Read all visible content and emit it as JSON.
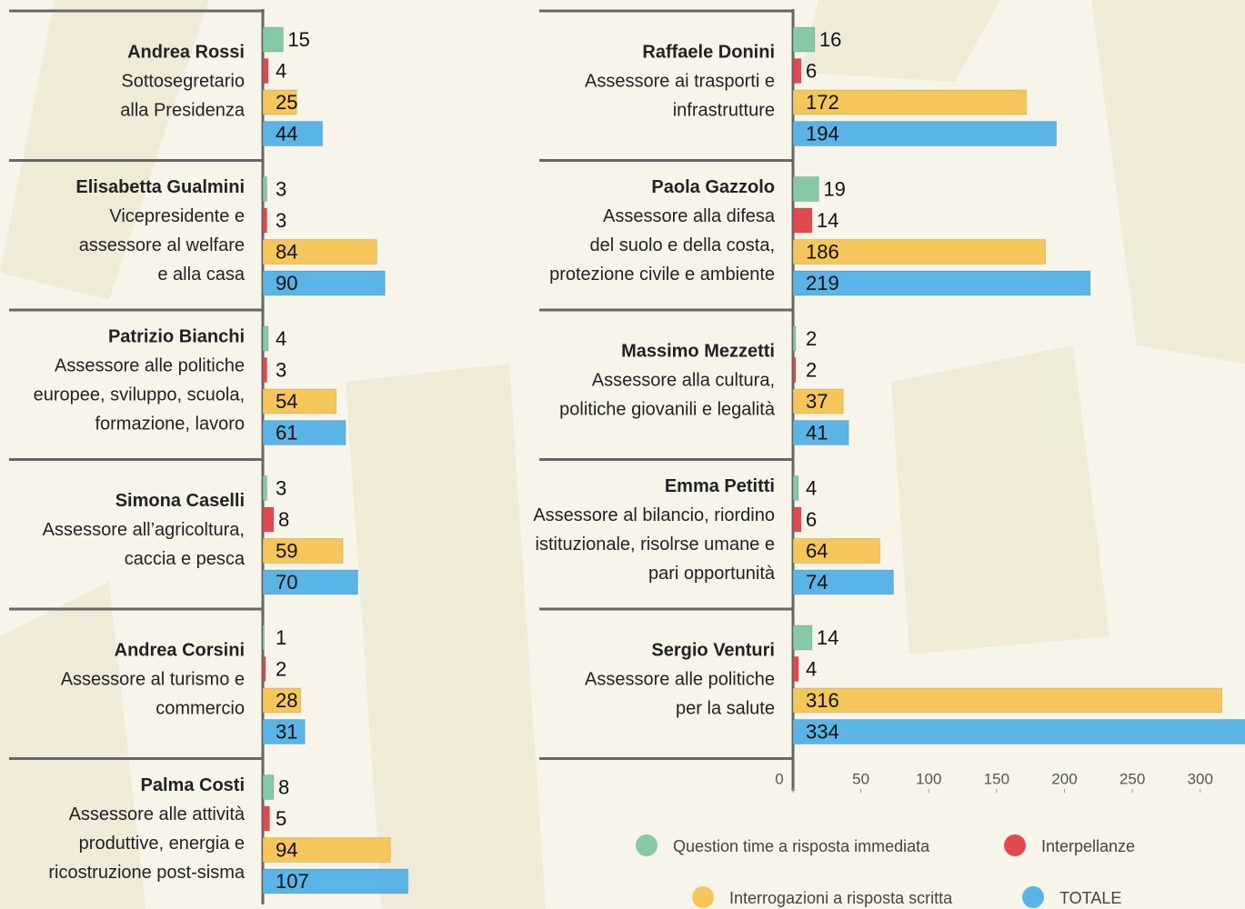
{
  "chart_data": [
    {
      "type": "bar",
      "categories": [
        "Andrea Rossi",
        "Elisabetta Gualmini",
        "Patrizio Bianchi",
        "Simona Caselli",
        "Andrea Corsini",
        "Palma Costi"
      ],
      "roles": [
        [
          "Sottosegretario",
          "alla Presidenza"
        ],
        [
          "Vicepresidente e",
          "assessore al welfare",
          "e alla casa"
        ],
        [
          "Assessore alle politiche",
          "europee, sviluppo, scuola,",
          "formazione, lavoro"
        ],
        [
          "Assessore all’agricoltura,",
          "caccia e pesca"
        ],
        [
          "Assessore al turismo e",
          "commercio"
        ],
        [
          "Assessore alle attività",
          "produttive, energia e",
          "ricostruzione post-sisma"
        ]
      ],
      "series": [
        {
          "color": "#86c9a4",
          "values": [
            15,
            3,
            4,
            3,
            1,
            8
          ]
        },
        {
          "color": "#e04a4f",
          "values": [
            4,
            3,
            3,
            8,
            2,
            5
          ]
        },
        {
          "color": "#f5c75a",
          "values": [
            25,
            84,
            54,
            59,
            28,
            94
          ]
        },
        {
          "color": "#5ab4e6",
          "values": [
            44,
            90,
            61,
            70,
            31,
            107
          ]
        }
      ]
    },
    {
      "type": "bar",
      "categories": [
        "Raffaele Donini",
        "Paola Gazzolo",
        "Massimo Mezzetti",
        "Emma Petitti",
        "Sergio Venturi"
      ],
      "roles": [
        [
          "Assessore ai trasporti e",
          "infrastrutture"
        ],
        [
          "Assessore alla difesa",
          "del suolo e della costa,",
          "protezione civile e ambiente"
        ],
        [
          "Assessore alla cultura,",
          "politiche giovanili e legalità"
        ],
        [
          "Assessore al bilancio, riordino",
          "istituzionale, risolrse umane e",
          "pari opportunità"
        ],
        [
          "Assessore alle politiche",
          "per la salute"
        ]
      ],
      "series": [
        {
          "name": "Question time a risposta immediata",
          "color": "#86c9a4",
          "values": [
            16,
            19,
            2,
            4,
            14
          ]
        },
        {
          "name": "Interpellanze",
          "color": "#e04a4f",
          "values": [
            6,
            14,
            2,
            6,
            4
          ]
        },
        {
          "name": "Interrogazioni a risposta scritta",
          "color": "#f5c75a",
          "values": [
            172,
            186,
            37,
            64,
            316
          ]
        },
        {
          "name": "TOTALE",
          "color": "#5ab4e6",
          "values": [
            194,
            219,
            41,
            74,
            334
          ]
        }
      ],
      "xlim": [
        0,
        333
      ],
      "xticks": [
        0,
        50,
        100,
        150,
        200,
        250,
        300
      ]
    }
  ]
}
